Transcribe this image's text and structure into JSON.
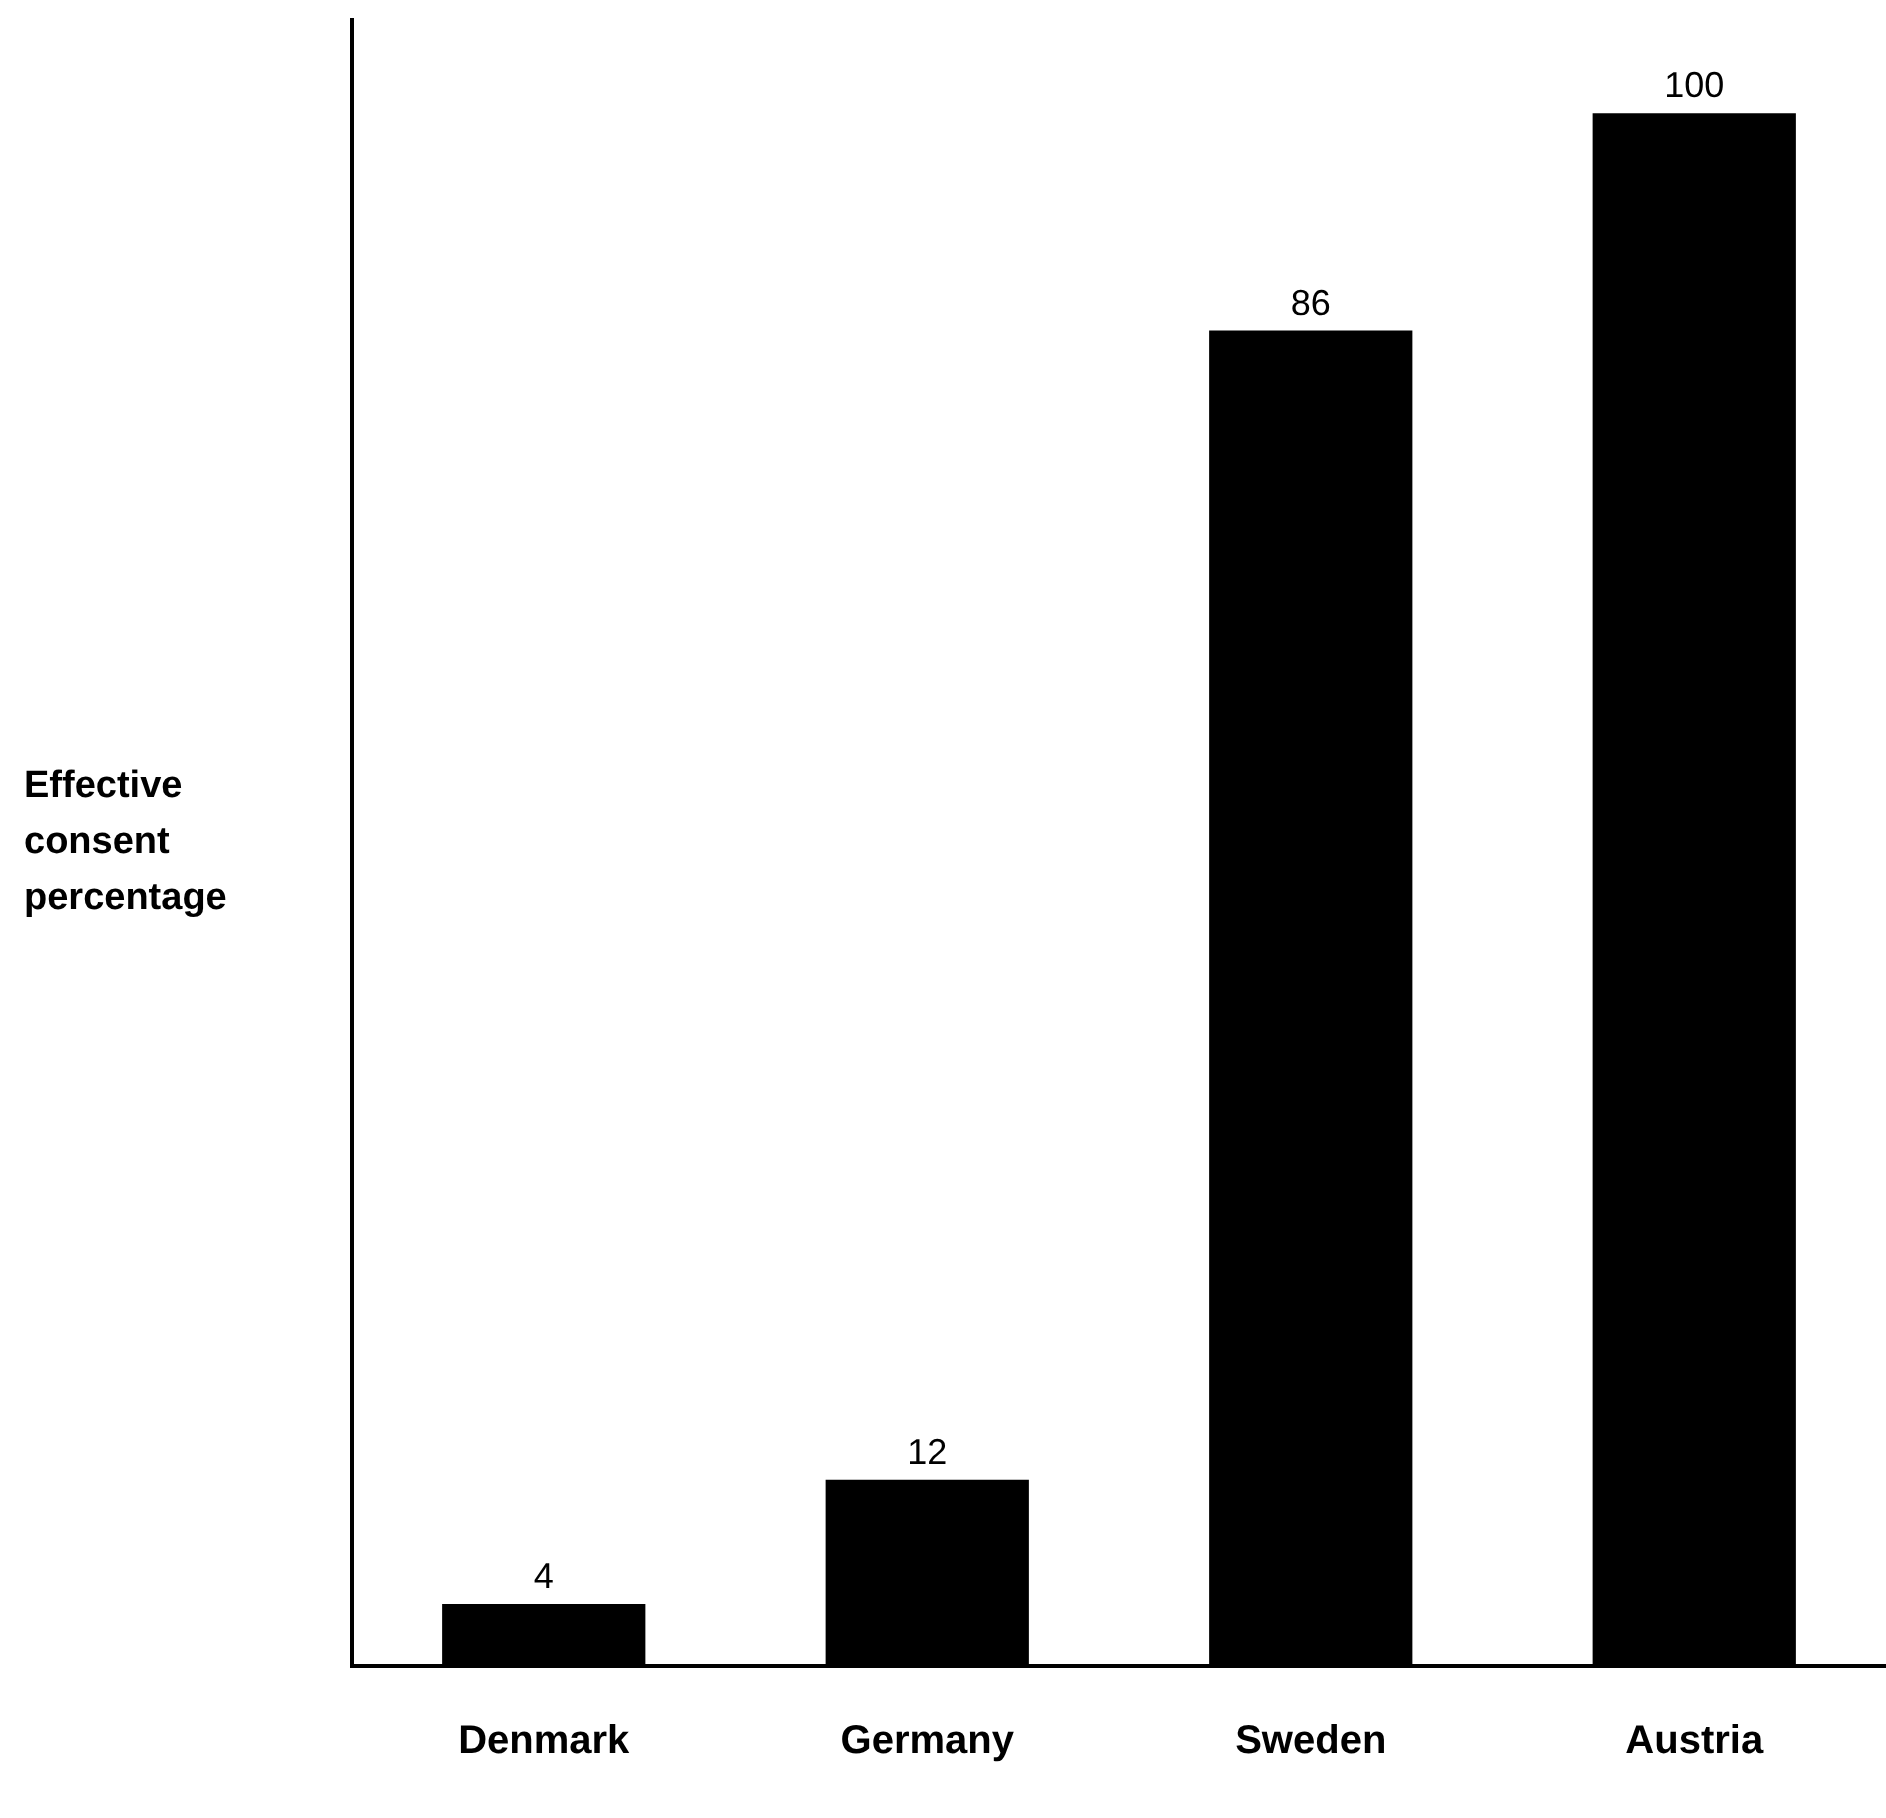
{
  "chart_data": {
    "type": "bar",
    "ylabel": "Effective consent percentage",
    "categories": [
      "Denmark",
      "Germany",
      "Sweden",
      "Austria"
    ],
    "values": [
      4,
      12,
      86,
      100
    ],
    "color": "#000000",
    "ylim": [
      0,
      106
    ],
    "data_labels": true,
    "grid": false,
    "legend": false,
    "tick_labels": "x"
  }
}
